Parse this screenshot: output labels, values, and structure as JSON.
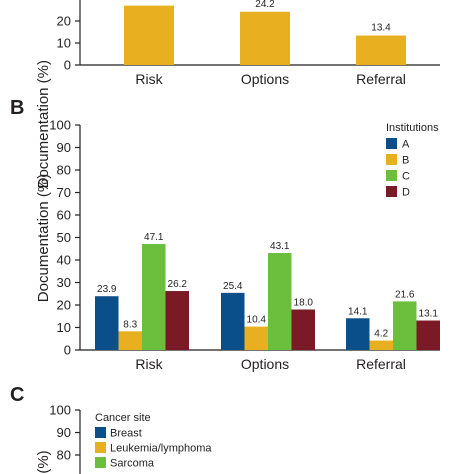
{
  "chart_data": [
    {
      "panel_label": "",
      "type": "bar",
      "categories": [
        "Risk",
        "Options",
        "Referral"
      ],
      "values": [
        27,
        24.2,
        13.4
      ],
      "value_labels": [
        "",
        "24.2",
        "13.4"
      ],
      "ylabel": "Documentation (%)",
      "ylim": [
        0,
        30
      ],
      "yticks": [
        0,
        10,
        20
      ],
      "color": "#e8b020"
    },
    {
      "panel_label": "B",
      "type": "bar",
      "categories": [
        "Risk",
        "Options",
        "Referral"
      ],
      "ylabel": "Documentation (%)",
      "ylim": [
        0,
        100
      ],
      "yticks": [
        0,
        10,
        20,
        30,
        40,
        50,
        60,
        70,
        80,
        90,
        100
      ],
      "legend_title": "Institutions",
      "legend_position": "top-right",
      "series": [
        {
          "name": "A",
          "color": "#0b4f8a",
          "values": [
            23.9,
            25.4,
            14.1
          ]
        },
        {
          "name": "B",
          "color": "#e8b020",
          "values": [
            8.3,
            10.4,
            4.2
          ]
        },
        {
          "name": "C",
          "color": "#6cbf3c",
          "values": [
            47.1,
            43.1,
            21.6
          ]
        },
        {
          "name": "D",
          "color": "#7a1a26",
          "values": [
            26.2,
            18.0,
            13.1
          ]
        }
      ]
    },
    {
      "panel_label": "C",
      "type": "bar",
      "ylabel": "(%)",
      "ylim": [
        0,
        100
      ],
      "yticks": [
        80,
        90,
        100
      ],
      "legend_title": "Cancer site",
      "legend_position": "top-left",
      "series": [
        {
          "name": "Breast",
          "color": "#0b4f8a"
        },
        {
          "name": "Leukemia/lymphoma",
          "color": "#e8b020"
        },
        {
          "name": "Sarcoma",
          "color": "#6cbf3c"
        }
      ]
    }
  ]
}
